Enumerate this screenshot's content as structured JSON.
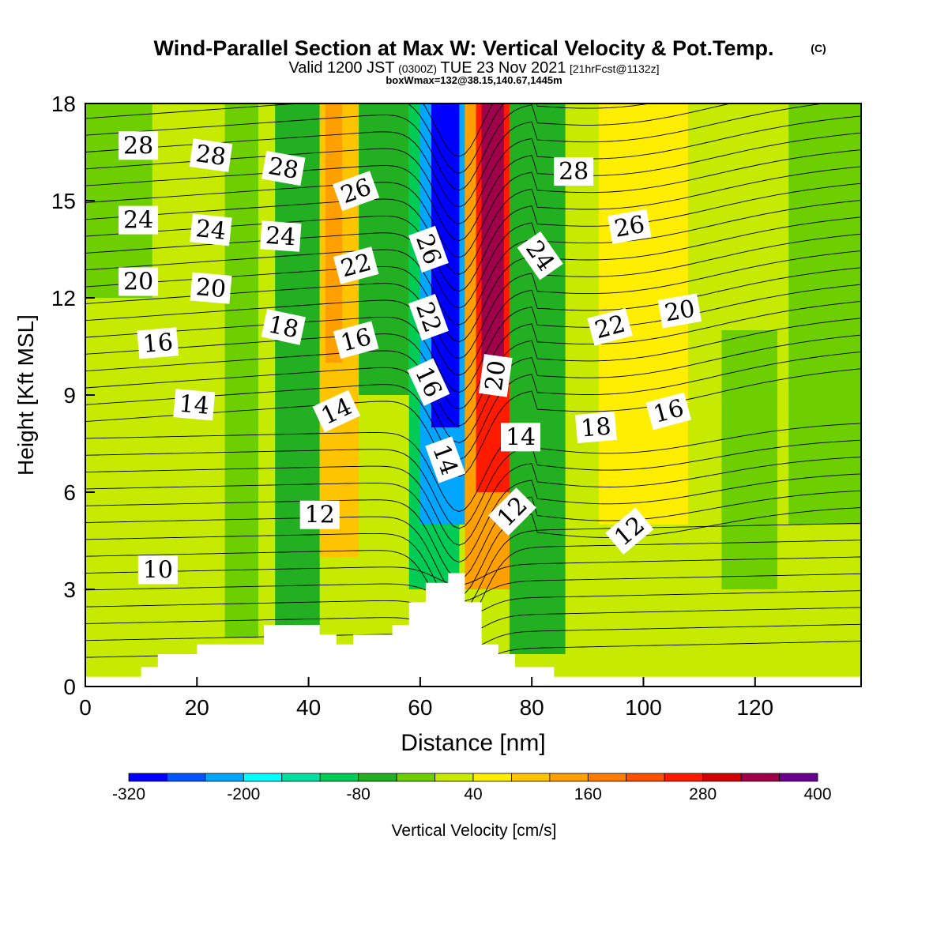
{
  "title": {
    "main": "Wind-Parallel Section at Max W: Vertical Velocity & Pot.Temp.",
    "copyright": "(C)",
    "valid_prefix": "Valid 1200 JST",
    "valid_utc": "(0300Z)",
    "valid_date": "TUE 23 Nov 2021",
    "forecast": "[21hrFcst@1132z]",
    "boxwmax": "boxWmax=132@38.15,140.67,1445m"
  },
  "chart_data": {
    "type": "heatmap",
    "xlabel": "Distance [nm]",
    "ylabel": "Height [Kft MSL]",
    "xlim": [
      0,
      139
    ],
    "ylim": [
      0,
      18
    ],
    "x_ticks": [
      0,
      20,
      40,
      60,
      80,
      100,
      120
    ],
    "y_ticks": [
      0,
      3,
      6,
      9,
      12,
      15,
      18
    ],
    "colorbar": {
      "label": "Vertical Velocity [cm/s]",
      "levels": [
        -320,
        -280,
        -240,
        -200,
        -160,
        -120,
        -80,
        -40,
        0,
        40,
        80,
        120,
        160,
        200,
        240,
        280,
        320,
        360,
        400
      ],
      "tick_labels": [
        "-320",
        "-200",
        "-80",
        "40",
        "160",
        "280",
        "400"
      ],
      "colors": [
        "#0000ff",
        "#0055ff",
        "#00a6ff",
        "#00ffff",
        "#00e0a0",
        "#00cc55",
        "#22b022",
        "#6ecf00",
        "#c6ea00",
        "#ffee00",
        "#ffc400",
        "#ffa000",
        "#ff7c00",
        "#ff5000",
        "#ff1a00",
        "#d40000",
        "#a0004a",
        "#6a0090"
      ]
    },
    "velocity_bands": [
      {
        "x0": 0,
        "x1": 139,
        "value": 30
      },
      {
        "x0": 0,
        "x1": 12,
        "y0": 12,
        "y1": 18,
        "value": -20
      },
      {
        "x0": 25,
        "x1": 31,
        "y0": 1.5,
        "y1": 18,
        "value": -30
      },
      {
        "x0": 34,
        "x1": 42,
        "y0": 1,
        "y1": 18,
        "value": -50
      },
      {
        "x0": 42,
        "x1": 49,
        "y0": 4,
        "y1": 18,
        "value": 100
      },
      {
        "x0": 43,
        "x1": 46,
        "y0": 10,
        "y1": 18,
        "value": 150
      },
      {
        "x0": 49,
        "x1": 58,
        "y0": 9,
        "y1": 18,
        "value": -80
      },
      {
        "x0": 58,
        "x1": 67,
        "y0": 3,
        "y1": 18,
        "value": -120
      },
      {
        "x0": 60,
        "x1": 68,
        "y0": 5,
        "y1": 18,
        "value": -220
      },
      {
        "x0": 62,
        "x1": 67,
        "y0": 8,
        "y1": 18,
        "value": -310
      },
      {
        "x0": 68,
        "x1": 77,
        "y0": 3,
        "y1": 18,
        "value": 140
      },
      {
        "x0": 70,
        "x1": 76,
        "y0": 6,
        "y1": 18,
        "value": 260
      },
      {
        "x0": 71,
        "x1": 75,
        "y0": 10,
        "y1": 18,
        "value": 330
      },
      {
        "x0": 76,
        "x1": 86,
        "y0": 1,
        "y1": 18,
        "value": -70
      },
      {
        "x0": 92,
        "x1": 108,
        "y0": 5,
        "y1": 18,
        "value": 70
      },
      {
        "x0": 114,
        "x1": 124,
        "y0": 3,
        "y1": 11,
        "value": -40
      },
      {
        "x0": 126,
        "x1": 139,
        "y0": 5,
        "y1": 18,
        "value": -20
      }
    ],
    "terrain": [
      {
        "x": 0,
        "y": 0.3
      },
      {
        "x": 10,
        "y": 0.3
      },
      {
        "x": 10,
        "y": 0.6
      },
      {
        "x": 13,
        "y": 0.6
      },
      {
        "x": 13,
        "y": 1.0
      },
      {
        "x": 20,
        "y": 1.0
      },
      {
        "x": 20,
        "y": 1.3
      },
      {
        "x": 32,
        "y": 1.3
      },
      {
        "x": 32,
        "y": 1.9
      },
      {
        "x": 42,
        "y": 1.9
      },
      {
        "x": 42,
        "y": 1.6
      },
      {
        "x": 45,
        "y": 1.6
      },
      {
        "x": 45,
        "y": 1.3
      },
      {
        "x": 48,
        "y": 1.3
      },
      {
        "x": 48,
        "y": 1.6
      },
      {
        "x": 55,
        "y": 1.6
      },
      {
        "x": 55,
        "y": 1.9
      },
      {
        "x": 58,
        "y": 1.9
      },
      {
        "x": 58,
        "y": 2.6
      },
      {
        "x": 61,
        "y": 2.6
      },
      {
        "x": 61,
        "y": 3.2
      },
      {
        "x": 65,
        "y": 3.2
      },
      {
        "x": 65,
        "y": 3.5
      },
      {
        "x": 68,
        "y": 3.5
      },
      {
        "x": 68,
        "y": 2.6
      },
      {
        "x": 71,
        "y": 2.6
      },
      {
        "x": 71,
        "y": 1.3
      },
      {
        "x": 74,
        "y": 1.3
      },
      {
        "x": 74,
        "y": 1.0
      },
      {
        "x": 77,
        "y": 1.0
      },
      {
        "x": 77,
        "y": 0.6
      },
      {
        "x": 84,
        "y": 0.6
      },
      {
        "x": 84,
        "y": 0.3
      },
      {
        "x": 139,
        "y": 0.3
      }
    ],
    "theta_contour_labels": [
      {
        "text": "28",
        "x": 9.5,
        "y": 16.7,
        "angle": 0
      },
      {
        "text": "28",
        "x": 22.5,
        "y": 16.4,
        "angle": 8
      },
      {
        "text": "28",
        "x": 35.5,
        "y": 16.0,
        "angle": 10
      },
      {
        "text": "26",
        "x": 48.5,
        "y": 15.3,
        "angle": -20
      },
      {
        "text": "28",
        "x": 87.5,
        "y": 15.9,
        "angle": 0
      },
      {
        "text": "24",
        "x": 9.5,
        "y": 14.4,
        "angle": 0
      },
      {
        "text": "24",
        "x": 22.5,
        "y": 14.1,
        "angle": 6
      },
      {
        "text": "24",
        "x": 35.0,
        "y": 13.9,
        "angle": 4
      },
      {
        "text": "26",
        "x": 61.5,
        "y": 13.5,
        "angle": 70
      },
      {
        "text": "24",
        "x": 81.5,
        "y": 13.3,
        "angle": 55
      },
      {
        "text": "26",
        "x": 97.5,
        "y": 14.2,
        "angle": -10
      },
      {
        "text": "20",
        "x": 9.5,
        "y": 12.5,
        "angle": 0
      },
      {
        "text": "20",
        "x": 22.5,
        "y": 12.3,
        "angle": 5
      },
      {
        "text": "22",
        "x": 48.5,
        "y": 13.0,
        "angle": -15
      },
      {
        "text": "22",
        "x": 61.5,
        "y": 11.4,
        "angle": 70
      },
      {
        "text": "22",
        "x": 94.0,
        "y": 11.1,
        "angle": -15
      },
      {
        "text": "20",
        "x": 106.5,
        "y": 11.6,
        "angle": -10
      },
      {
        "text": "18",
        "x": 35.5,
        "y": 11.1,
        "angle": 12
      },
      {
        "text": "16",
        "x": 13.0,
        "y": 10.6,
        "angle": -5
      },
      {
        "text": "16",
        "x": 48.5,
        "y": 10.7,
        "angle": -15
      },
      {
        "text": "20",
        "x": 73.5,
        "y": 9.6,
        "angle": -82
      },
      {
        "text": "16",
        "x": 61.5,
        "y": 9.4,
        "angle": 65
      },
      {
        "text": "16",
        "x": 104.5,
        "y": 8.5,
        "angle": -15
      },
      {
        "text": "14",
        "x": 19.5,
        "y": 8.7,
        "angle": 5
      },
      {
        "text": "14",
        "x": 45.0,
        "y": 8.5,
        "angle": -25
      },
      {
        "text": "18",
        "x": 91.5,
        "y": 8.0,
        "angle": -5
      },
      {
        "text": "14",
        "x": 78.0,
        "y": 7.7,
        "angle": 0
      },
      {
        "text": "14",
        "x": 64.5,
        "y": 7.0,
        "angle": 70
      },
      {
        "text": "12",
        "x": 42.0,
        "y": 5.3,
        "angle": 0
      },
      {
        "text": "12",
        "x": 76.5,
        "y": 5.4,
        "angle": -45
      },
      {
        "text": "12",
        "x": 97.5,
        "y": 4.8,
        "angle": -40
      },
      {
        "text": "10",
        "x": 13.0,
        "y": 3.6,
        "angle": 0
      }
    ]
  }
}
